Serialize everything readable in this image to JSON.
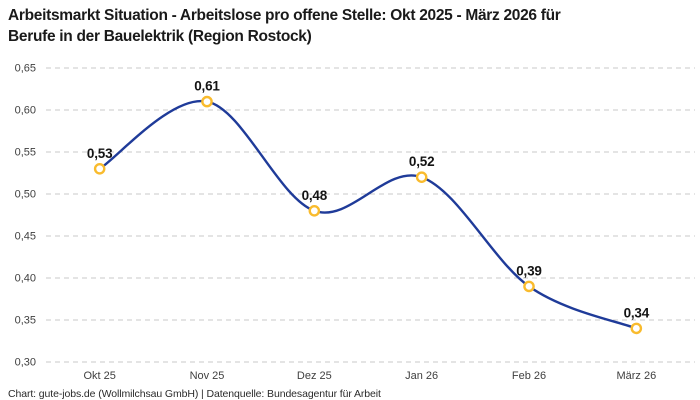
{
  "header": {
    "title_lines": [
      "Arbeitsmarkt Situation - Arbeitslose pro offene Stelle: Okt 2025 - März 2026 für",
      "Berufe in der Bauelektrik (Region Rostock)"
    ]
  },
  "footer": {
    "credit": "Chart: gute-jobs.de (Wollmilchsau GmbH) | Datenquelle: Bundesagentur für Arbeit"
  },
  "chart_data": {
    "type": "line",
    "title": "Arbeitsmarkt Situation - Arbeitslose pro offene Stelle: Okt 2025 - März 2026 für Berufe in der Bauelektrik (Region Rostock)",
    "categories": [
      "Okt 25",
      "Nov 25",
      "Dez 25",
      "Jan 26",
      "Feb 26",
      "März 26"
    ],
    "values": [
      0.53,
      0.61,
      0.48,
      0.52,
      0.39,
      0.34
    ],
    "point_labels": [
      "0,53",
      "0,61",
      "0,48",
      "0,52",
      "0,39",
      "0,34"
    ],
    "y_tick_values": [
      0.3,
      0.35,
      0.4,
      0.45,
      0.5,
      0.55,
      0.6,
      0.65
    ],
    "y_tick_labels": [
      "0,30",
      "0,35",
      "0,40",
      "0,45",
      "0,50",
      "0,55",
      "0,60",
      "0,65"
    ],
    "ylim": [
      0.3,
      0.65
    ],
    "xlabel": "",
    "ylabel": "",
    "grid": "horizontal-dashed",
    "legend": "none",
    "curve": "smooth",
    "colors": {
      "line": "#1f3b99",
      "marker_stroke": "#f9bb2d",
      "marker_fill": "#ffffff",
      "grid": "#c9c9c9",
      "tick_text": "#3f3f3f",
      "label_text": "#141414",
      "title_text": "#1a1a1a"
    }
  }
}
